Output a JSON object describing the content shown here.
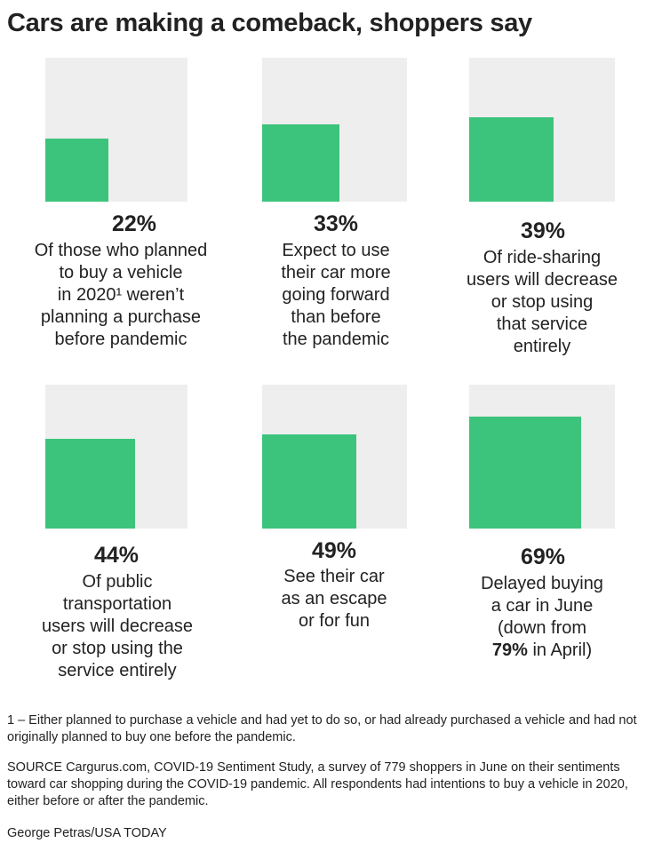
{
  "title": "Cars are making a comeback, shoppers say",
  "colors": {
    "bar": "#3cc47c",
    "panel": "#eeeeee"
  },
  "chart_data": {
    "type": "bar",
    "series": [
      {
        "name": "22%",
        "value": 22,
        "description_lines": [
          "Of those who planned",
          "to buy a vehicle",
          "in 2020¹ weren’t",
          "planning a purchase",
          "before pandemic"
        ]
      },
      {
        "name": "33%",
        "value": 33,
        "description_lines": [
          "Expect to use",
          "their car more",
          "going forward",
          "than before",
          "the pandemic"
        ]
      },
      {
        "name": "39%",
        "value": 39,
        "description_lines": [
          "Of ride-sharing",
          "users will decrease",
          "or stop using",
          "that service",
          "entirely"
        ]
      },
      {
        "name": "44%",
        "value": 44,
        "description_lines": [
          "Of public",
          "transportation",
          "users will decrease",
          "or stop using the",
          "service entirely"
        ]
      },
      {
        "name": "49%",
        "value": 49,
        "description_lines": [
          "See their car",
          "as an escape",
          "or for fun"
        ]
      },
      {
        "name": "69%",
        "value": 69,
        "description_lines": [
          "Delayed buying",
          "a car in June",
          "(down from",
          "in April)"
        ],
        "emphasis": "79%"
      }
    ]
  },
  "footnote": "1 – Either planned to purchase a vehicle and had yet to do so, or had already purchased a vehicle and had not originally planned to buy one before the pandemic.",
  "source": "SOURCE Cargurus.com, COVID-19 Sentiment Study, a survey of 779 shoppers in June on their sentiments toward car shopping during the COVID-19 pandemic. All respondents had intentions to buy a vehicle in 2020, either before or after the pandemic.",
  "credit": "George Petras/USA TODAY"
}
